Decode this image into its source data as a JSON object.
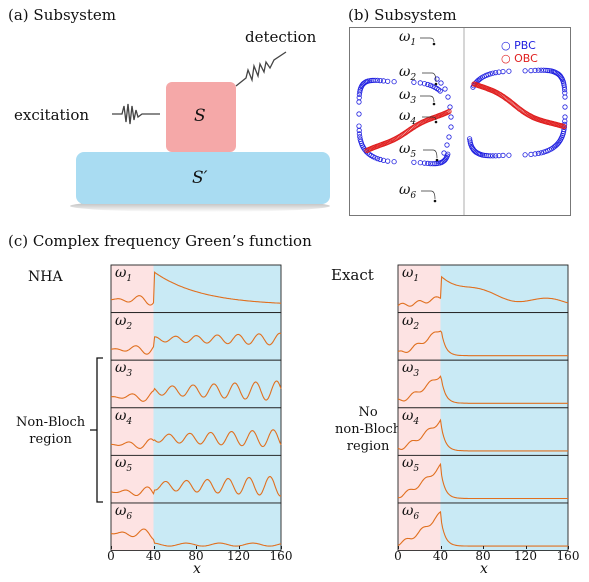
{
  "panel_a": {
    "label": "(a) Subsystem",
    "detection": "detection",
    "excitation": "excitation",
    "s_label": "S",
    "s_prime_label": "S′"
  },
  "panel_b": {
    "label": "(b) Subsystem",
    "legend": [
      {
        "name": "PBC",
        "color": "#2020e0"
      },
      {
        "name": "OBC",
        "color": "#e02020"
      }
    ],
    "omega_labels": [
      "ω1",
      "ω2",
      "ω3",
      "ω4",
      "ω5",
      "ω6"
    ]
  },
  "panel_c": {
    "label": "(c) Complex frequency Green’s function",
    "left_title": "NHA",
    "right_title": "Exact",
    "left_annotation": [
      "Non-Bloch",
      "region"
    ],
    "right_annotation": [
      "No",
      "non-Bloch",
      "region"
    ],
    "omega_labels": [
      "ω1",
      "ω2",
      "ω3",
      "ω4",
      "ω5",
      "ω6"
    ],
    "x_ticks": [
      "0",
      "40",
      "80",
      "120",
      "160"
    ],
    "xlabel": "x",
    "line_color": "#e07020",
    "subsystem_color": "#fde3e3",
    "environment_color": "#c9eaf5"
  }
}
